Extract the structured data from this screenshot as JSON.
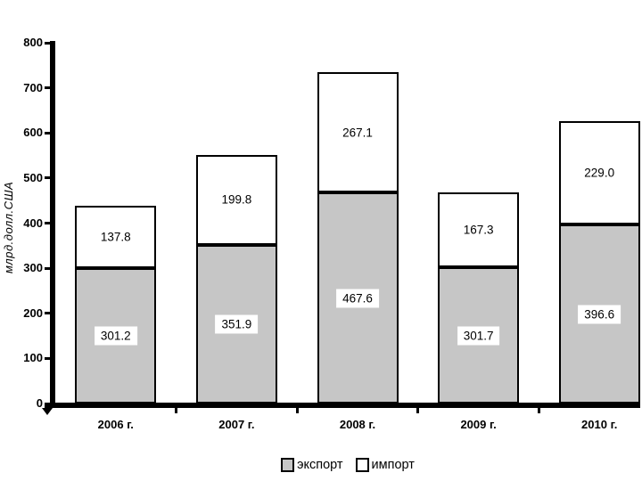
{
  "chart_data": {
    "type": "bar",
    "stacked": true,
    "title": "",
    "xlabel": "",
    "ylabel": "млрд.долл.США",
    "categories": [
      "2006 г.",
      "2007 г.",
      "2008 г.",
      "2009 г.",
      "2010 г."
    ],
    "series": [
      {
        "id": "export",
        "name": "экспорт",
        "color": "#c6c6c6",
        "values": [
          301.2,
          351.9,
          467.6,
          301.7,
          396.6
        ]
      },
      {
        "id": "import",
        "name": "импорт",
        "color": "#ffffff",
        "values": [
          137.8,
          199.8,
          267.1,
          167.3,
          229.0
        ]
      }
    ],
    "value_labels": [
      "301.2",
      "351.9",
      "467.6",
      "301.7",
      "396.6",
      "137.8",
      "199.8",
      "267.1",
      "167.3",
      "229.0"
    ],
    "ylim": [
      0,
      800
    ],
    "ytick_step": 100,
    "yticks": [
      0,
      100,
      200,
      300,
      400,
      500,
      600,
      700,
      800
    ],
    "grid": false,
    "legend_position": "bottom"
  }
}
